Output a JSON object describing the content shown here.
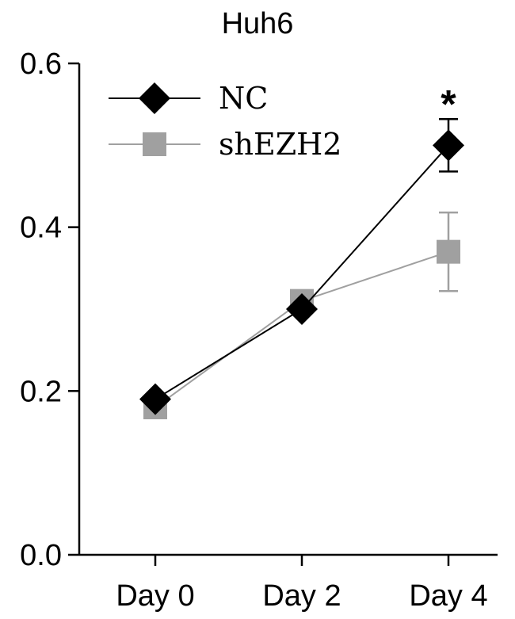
{
  "chart_data": {
    "type": "line",
    "title": "Huh6",
    "categories": [
      "Day 0",
      "Day 2",
      "Day 4"
    ],
    "yticks": [
      "0.0",
      "0.2",
      "0.4",
      "0.6"
    ],
    "ylim": [
      0,
      0.6
    ],
    "grid": false,
    "legend_position": "top-left",
    "series": [
      {
        "name": "NC",
        "values": [
          0.19,
          0.3,
          0.5
        ],
        "errors": [
          0,
          0,
          0.032
        ],
        "marker": "diamond",
        "color": "#000000"
      },
      {
        "name": "shEZH2",
        "values": [
          0.18,
          0.31,
          0.37
        ],
        "errors": [
          0,
          0,
          0.048
        ],
        "marker": "square",
        "color": "#a0a0a0"
      }
    ],
    "annotations": [
      {
        "text": "*",
        "category": "Day 4"
      }
    ]
  }
}
